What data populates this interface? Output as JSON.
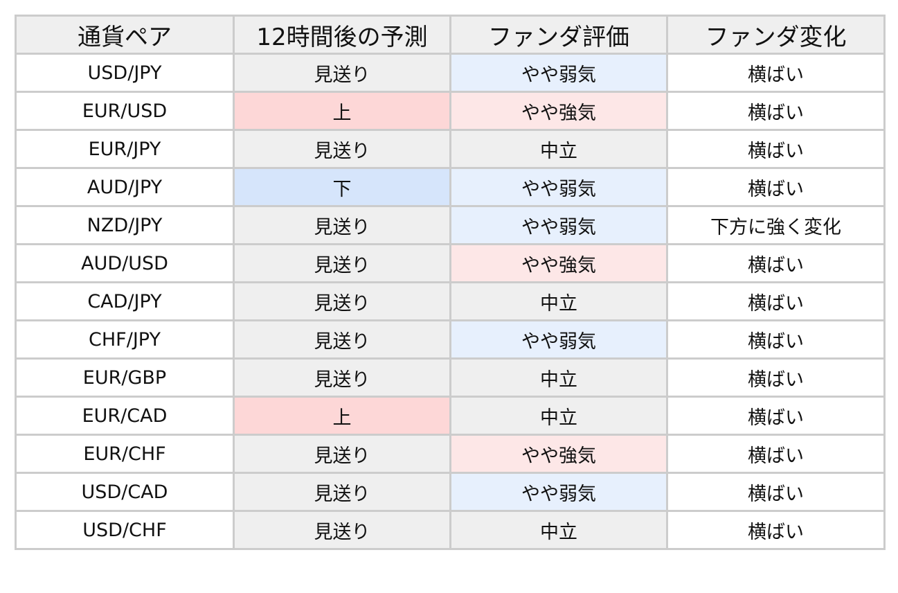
{
  "headers": [
    "通貨ペア",
    "12時間後の予測",
    "ファンダ評価",
    "ファンダ変化"
  ],
  "colors": {
    "border": "#cccccc",
    "neutral": "#efefef",
    "up": "#fdd7d7",
    "down": "#d6e5fb",
    "fund_bullish": "#fde7e7",
    "fund_bearish": "#e7f0fd"
  },
  "rows": [
    {
      "pair": "USD/JPY",
      "forecast": "見送り",
      "fundamental": "やや弱気",
      "change": "横ばい"
    },
    {
      "pair": "EUR/USD",
      "forecast": "上",
      "fundamental": "やや強気",
      "change": "横ばい"
    },
    {
      "pair": "EUR/JPY",
      "forecast": "見送り",
      "fundamental": "中立",
      "change": "横ばい"
    },
    {
      "pair": "AUD/JPY",
      "forecast": "下",
      "fundamental": "やや弱気",
      "change": "横ばい"
    },
    {
      "pair": "NZD/JPY",
      "forecast": "見送り",
      "fundamental": "やや弱気",
      "change": "下方に強く変化"
    },
    {
      "pair": "AUD/USD",
      "forecast": "見送り",
      "fundamental": "やや強気",
      "change": "横ばい"
    },
    {
      "pair": "CAD/JPY",
      "forecast": "見送り",
      "fundamental": "中立",
      "change": "横ばい"
    },
    {
      "pair": "CHF/JPY",
      "forecast": "見送り",
      "fundamental": "やや弱気",
      "change": "横ばい"
    },
    {
      "pair": "EUR/GBP",
      "forecast": "見送り",
      "fundamental": "中立",
      "change": "横ばい"
    },
    {
      "pair": "EUR/CAD",
      "forecast": "上",
      "fundamental": "中立",
      "change": "横ばい"
    },
    {
      "pair": "EUR/CHF",
      "forecast": "見送り",
      "fundamental": "やや強気",
      "change": "横ばい"
    },
    {
      "pair": "USD/CAD",
      "forecast": "見送り",
      "fundamental": "やや弱気",
      "change": "横ばい"
    },
    {
      "pair": "USD/CHF",
      "forecast": "見送り",
      "fundamental": "中立",
      "change": "横ばい"
    }
  ]
}
